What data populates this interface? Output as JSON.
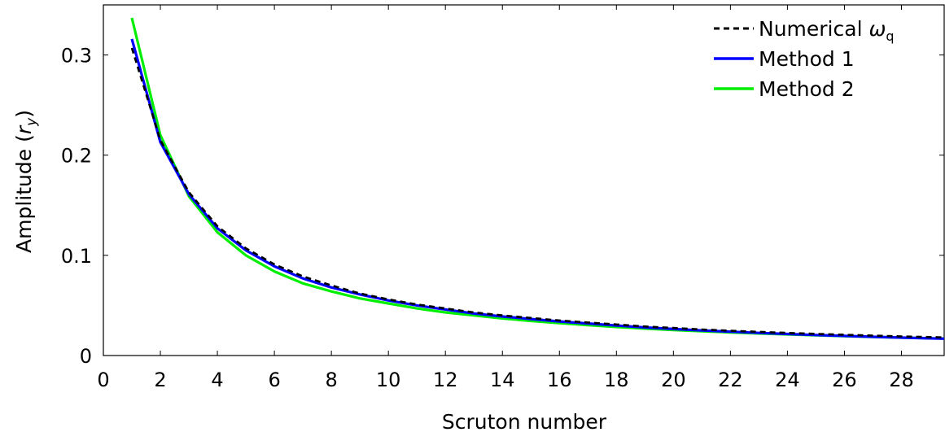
{
  "chart_data": {
    "type": "line",
    "xlabel": "Scruton number",
    "ylabel": "Amplitude (r_y)",
    "ylabel_parts": {
      "prefix": "Amplitude (",
      "var": "r",
      "sub": "y",
      "suffix": ")"
    },
    "xlim": [
      0,
      29.5
    ],
    "ylim": [
      0,
      0.35
    ],
    "xticks": [
      0,
      2,
      4,
      6,
      8,
      10,
      12,
      14,
      16,
      18,
      20,
      22,
      24,
      26,
      28
    ],
    "xtick_labels": [
      "0",
      "2",
      "4",
      "6",
      "8",
      "10",
      "12",
      "14",
      "16",
      "18",
      "20",
      "22",
      "24",
      "26",
      "28"
    ],
    "yticks": [
      0,
      0.1,
      0.2,
      0.3
    ],
    "ytick_labels": [
      "0",
      "0.1",
      "0.2",
      "0.3"
    ],
    "grid": false,
    "legend_position": "top-right",
    "x": [
      1,
      2,
      3,
      4,
      5,
      6,
      7,
      8,
      9,
      10,
      11,
      12,
      13,
      14,
      15,
      16,
      17,
      18,
      19,
      20,
      21,
      22,
      23,
      24,
      25,
      26,
      27,
      28,
      29,
      29.5
    ],
    "series": [
      {
        "name": "Numerical ω_q",
        "legend": {
          "prefix": "Numerical ",
          "sym": "ω",
          "sub": "q"
        },
        "color": "#000000",
        "style": "dashed",
        "values": [
          0.307,
          0.215,
          0.163,
          0.129,
          0.107,
          0.091,
          0.079,
          0.07,
          0.062,
          0.056,
          0.051,
          0.047,
          0.043,
          0.04,
          0.0375,
          0.035,
          0.033,
          0.031,
          0.029,
          0.0275,
          0.026,
          0.0248,
          0.0236,
          0.0226,
          0.0216,
          0.0207,
          0.0199,
          0.0191,
          0.0184,
          0.0181
        ]
      },
      {
        "name": "Method 1",
        "legend": {
          "prefix": "Method 1",
          "sym": "",
          "sub": ""
        },
        "color": "#0000ff",
        "style": "solid",
        "values": [
          0.316,
          0.213,
          0.161,
          0.127,
          0.105,
          0.089,
          0.077,
          0.068,
          0.061,
          0.055,
          0.05,
          0.046,
          0.042,
          0.039,
          0.0365,
          0.034,
          0.032,
          0.03,
          0.028,
          0.0265,
          0.025,
          0.0238,
          0.0226,
          0.0215,
          0.0205,
          0.0196,
          0.0187,
          0.0179,
          0.0171,
          0.0168
        ]
      },
      {
        "name": "Method 2",
        "legend": {
          "prefix": "Method 2",
          "sym": "",
          "sub": ""
        },
        "color": "#00ee00",
        "style": "solid",
        "values": [
          0.337,
          0.22,
          0.159,
          0.123,
          0.1,
          0.084,
          0.072,
          0.064,
          0.057,
          0.052,
          0.047,
          0.043,
          0.04,
          0.037,
          0.0345,
          0.0323,
          0.0303,
          0.0285,
          0.0269,
          0.0255,
          0.0242,
          0.0231,
          0.022,
          0.0211,
          0.0202,
          0.0194,
          0.0186,
          0.0179,
          0.0172,
          0.0169
        ]
      }
    ]
  }
}
